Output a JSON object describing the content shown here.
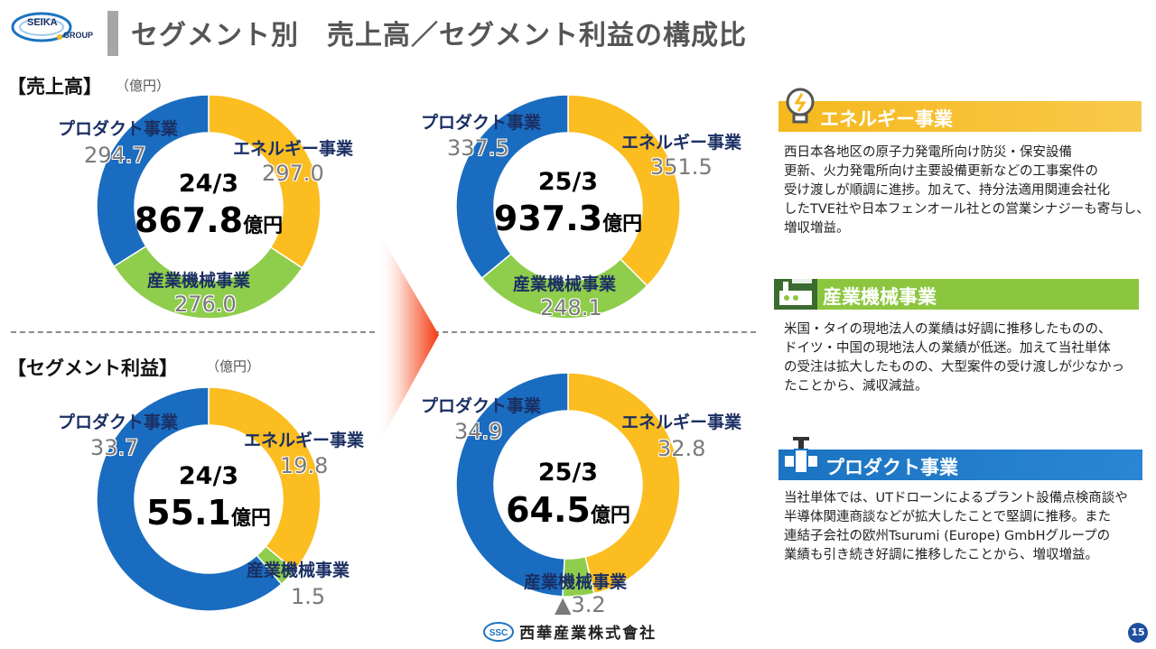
{
  "header": {
    "logo_line1": "SEIKA",
    "logo_line2": "GROUP",
    "title": "セグメント別　売上高／セグメント利益の構成比"
  },
  "sections": {
    "sales_label": "【売上高】",
    "sales_unit": "（億円）",
    "profit_label": "【セグメント利益】",
    "profit_unit": "（億円）"
  },
  "colors": {
    "product": "#1a6cc0",
    "energy": "#fbbd20",
    "industrial": "#8fcd4c",
    "energy_panel": "#f6b81d",
    "industrial_panel": "#8cc63f",
    "product_panel": "#1b73c1"
  },
  "chart_data": [
    {
      "type": "pie",
      "period": "24/3",
      "total": "867.8",
      "total_unit": "億円",
      "slices": [
        {
          "name": "エネルギー事業",
          "value": 297.0,
          "label": "297.0"
        },
        {
          "name": "産業機械事業",
          "value": 276.0,
          "label": "276.0"
        },
        {
          "name": "プロダクト事業",
          "value": 294.7,
          "label": "294.7"
        }
      ]
    },
    {
      "type": "pie",
      "period": "25/3",
      "total": "937.3",
      "total_unit": "億円",
      "slices": [
        {
          "name": "エネルギー事業",
          "value": 351.5,
          "label": "351.5"
        },
        {
          "name": "産業機械事業",
          "value": 248.1,
          "label": "248.1"
        },
        {
          "name": "プロダクト事業",
          "value": 337.5,
          "label": "337.5"
        }
      ]
    },
    {
      "type": "pie",
      "period": "24/3",
      "total": "55.1",
      "total_unit": "億円",
      "slices": [
        {
          "name": "エネルギー事業",
          "value": 19.8,
          "label": "19.8"
        },
        {
          "name": "産業機械事業",
          "value": 1.5,
          "label": "1.5"
        },
        {
          "name": "プロダクト事業",
          "value": 33.7,
          "label": "33.7"
        }
      ]
    },
    {
      "type": "pie",
      "period": "25/3",
      "total": "64.5",
      "total_unit": "億円",
      "slices": [
        {
          "name": "エネルギー事業",
          "value": 32.8,
          "label": "32.8"
        },
        {
          "name": "産業機械事業",
          "value": -3.2,
          "label": "▲3.2"
        },
        {
          "name": "プロダクト事業",
          "value": 34.9,
          "label": "34.9"
        }
      ]
    }
  ],
  "panels": {
    "energy": {
      "title": "エネルギー事業",
      "icon": "lightbulb-icon",
      "lines": [
        "西日本各地区の原子力発電所向け防災・保安設備",
        "更新、火力発電所向け主要設備更新などの工事案件の",
        "受け渡しが順調に進捗。加えて、持分法適用関連会社化",
        "したTVE社や日本フェンオール社との営業シナジーも寄与し、",
        "増収増益。"
      ]
    },
    "industrial": {
      "title": "産業機械事業",
      "icon": "factory-icon",
      "lines": [
        "米国・タイの現地法人の業績は好調に推移したものの、",
        "ドイツ・中国の現地法人の業績が低迷。加えて当社単体",
        "の受注は拡大したものの、大型案件の受け渡しが少なかっ",
        "たことから、減収減益。"
      ]
    },
    "product": {
      "title": "プロダクト事業",
      "icon": "valve-icon",
      "lines": [
        "当社単体では、UTドローンによるプラント設備点検商談や",
        "半導体関連商談などが拡大したことで堅調に推移。また",
        "連結子会社の欧州Tsurumi (Europe) GmbHグループの",
        "業績も引き続き好調に推移したことから、増収増益。"
      ]
    }
  },
  "footer": {
    "company_mark": "SSC",
    "company_name": "西華産業株式會社",
    "page_number": "15"
  }
}
